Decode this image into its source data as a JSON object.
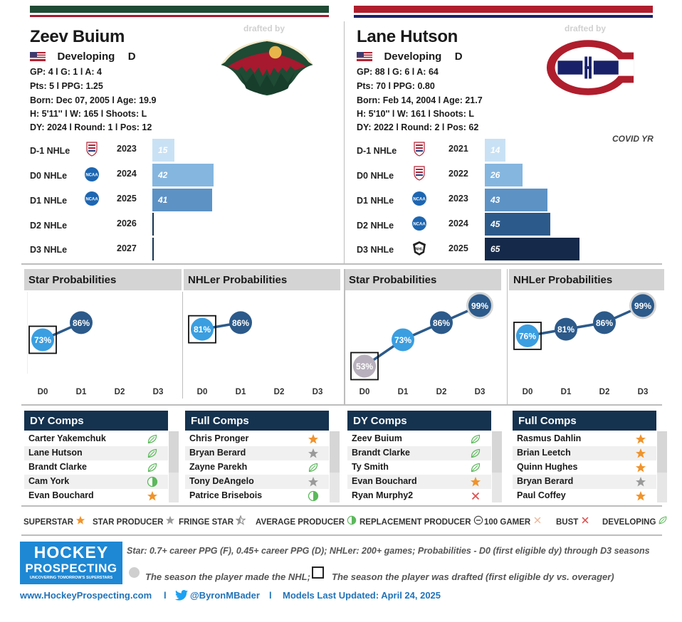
{
  "players": [
    {
      "name": "Zeev Buium",
      "status": "Developing",
      "position": "D",
      "stats1": "GP: 4 l G: 1 l A: 4",
      "stats2": "Pts: 5 l PPG: 1.25",
      "born": "Born: Dec 07, 2005 l Age: 19.9",
      "body": "H: 5'11'' l W: 165 l Shoots: L",
      "draft": "DY: 2024 l Round: 1 l Pos: 12",
      "drafted_by": "drafted by",
      "team_logo": "wild-logo-icon",
      "note": "",
      "nhle_rows": [
        {
          "label": "D-1 NHLe",
          "league": "usntdp-icon",
          "year": "2023",
          "value": 15,
          "color": "#c9e1f4"
        },
        {
          "label": "D0 NHLe",
          "league": "ncaa-icon",
          "year": "2024",
          "value": 42,
          "color": "#85b6df"
        },
        {
          "label": "D1 NHLe",
          "league": "ncaa-icon",
          "year": "2025",
          "value": 41,
          "color": "#5d92c5"
        },
        {
          "label": "D2 NHLe",
          "league": "",
          "year": "2026",
          "value": null,
          "color": "#15324f"
        },
        {
          "label": "D3 NHLe",
          "league": "",
          "year": "2027",
          "value": null,
          "color": "#15324f"
        }
      ]
    },
    {
      "name": "Lane Hutson",
      "status": "Developing",
      "position": "D",
      "stats1": "GP: 88 l G: 6 l A: 64",
      "stats2": "Pts: 70 l PPG: 0.80",
      "born": "Born: Feb 14, 2004 l Age: 21.7",
      "body": "H: 5'10'' l W: 161 l Shoots: L",
      "draft": "DY: 2022 l Round: 2 l Pos: 62",
      "drafted_by": "drafted by",
      "team_logo": "canadiens-logo-icon",
      "note": "COVID YR",
      "nhle_rows": [
        {
          "label": "D-1 NHLe",
          "league": "usntdp-icon",
          "year": "2021",
          "value": 14,
          "color": "#c9e1f4"
        },
        {
          "label": "D0 NHLe",
          "league": "usntdp-icon",
          "year": "2022",
          "value": 26,
          "color": "#85b6df"
        },
        {
          "label": "D1 NHLe",
          "league": "ncaa-icon",
          "year": "2023",
          "value": 43,
          "color": "#5d92c5"
        },
        {
          "label": "D2 NHLe",
          "league": "ncaa-icon",
          "year": "2024",
          "value": 45,
          "color": "#2c5a8a"
        },
        {
          "label": "D3 NHLe",
          "league": "nhl-icon",
          "year": "2025",
          "value": 65,
          "color": "#15294a"
        }
      ]
    }
  ],
  "chart_data": [
    {
      "type": "line",
      "title": "Star Probabilities",
      "categories": [
        "D0",
        "D1",
        "D2",
        "D3"
      ],
      "values": [
        73,
        86,
        null,
        null
      ],
      "labels": [
        "73%",
        "86%",
        "",
        ""
      ],
      "drafted_index": 0,
      "made_nhl_index": null
    },
    {
      "type": "line",
      "title": "NHLer Probabilities",
      "categories": [
        "D0",
        "D1",
        "D2",
        "D3"
      ],
      "values": [
        81,
        86,
        null,
        null
      ],
      "labels": [
        "81%",
        "86%",
        "",
        ""
      ],
      "drafted_index": 0,
      "made_nhl_index": null
    },
    {
      "type": "line",
      "title": "Star Probabilities",
      "categories": [
        "D0",
        "D1",
        "D2",
        "D3"
      ],
      "values": [
        53,
        73,
        86,
        99
      ],
      "labels": [
        "53%",
        "73%",
        "86%",
        "99%"
      ],
      "drafted_index": 0,
      "made_nhl_index": 3
    },
    {
      "type": "line",
      "title": "NHLer Probabilities",
      "categories": [
        "D0",
        "D1",
        "D2",
        "D3"
      ],
      "values": [
        76,
        81,
        86,
        99
      ],
      "labels": [
        "76%",
        "81%",
        "86%",
        "99%"
      ],
      "drafted_index": 0,
      "made_nhl_index": 3
    }
  ],
  "comps": [
    {
      "title": "DY Comps",
      "rows": [
        {
          "name": "Carter Yakemchuk",
          "icon": "developing"
        },
        {
          "name": "Lane Hutson",
          "icon": "developing"
        },
        {
          "name": "Brandt Clarke",
          "icon": "developing"
        },
        {
          "name": "Cam York",
          "icon": "average"
        },
        {
          "name": "Evan Bouchard",
          "icon": "superstar"
        }
      ]
    },
    {
      "title": "Full Comps",
      "rows": [
        {
          "name": "Chris Pronger",
          "icon": "superstar"
        },
        {
          "name": "Bryan Berard",
          "icon": "star"
        },
        {
          "name": "Zayne Parekh",
          "icon": "developing"
        },
        {
          "name": "Tony DeAngelo",
          "icon": "star"
        },
        {
          "name": "Patrice Brisebois",
          "icon": "average"
        }
      ]
    },
    {
      "title": "DY Comps",
      "rows": [
        {
          "name": "Zeev Buium",
          "icon": "developing"
        },
        {
          "name": "Brandt Clarke",
          "icon": "developing"
        },
        {
          "name": "Ty Smith",
          "icon": "developing"
        },
        {
          "name": "Evan Bouchard",
          "icon": "superstar"
        },
        {
          "name": "Ryan Murphy2",
          "icon": "bust"
        }
      ]
    },
    {
      "title": "Full Comps",
      "rows": [
        {
          "name": "Rasmus Dahlin",
          "icon": "superstar"
        },
        {
          "name": "Brian Leetch",
          "icon": "superstar"
        },
        {
          "name": "Quinn Hughes",
          "icon": "superstar"
        },
        {
          "name": "Bryan Berard",
          "icon": "star"
        },
        {
          "name": "Paul Coffey",
          "icon": "superstar"
        }
      ]
    }
  ],
  "legend": [
    {
      "label": "SUPERSTAR",
      "icon": "superstar"
    },
    {
      "label": "STAR PRODUCER",
      "icon": "star"
    },
    {
      "label": "FRINGE STAR",
      "icon": "fringe"
    },
    {
      "label": "AVERAGE PRODUCER",
      "icon": "average"
    },
    {
      "label": "REPLACEMENT PRODUCER",
      "icon": "replacement"
    },
    {
      "label": "100 GAMER",
      "icon": "gamer"
    },
    {
      "label": "BUST",
      "icon": "bust"
    },
    {
      "label": "DEVELOPING",
      "icon": "developing"
    }
  ],
  "footer": {
    "logo_line1": "HOCKEY",
    "logo_line2": "PROSPECTING",
    "logo_tagline": "UNCOVERING TOMORROW'S SUPERSTARS",
    "definitions": "Star: 0.7+ career PPG (F), 0.45+ career PPG (D); NHLer: 200+ games; Probabilities - D0 (first eligible dy) through D3 seasons",
    "nhl_season": "The season the player made the NHL;",
    "drafted_season": "The season the player was drafted (first eligible dy vs. overager)",
    "website": "www.HockeyProspecting.com",
    "sep1": "l",
    "twitter": "@ByronMBader",
    "sep2": "l",
    "updated": "Models Last Updated: April 24, 2025"
  },
  "colors": {
    "wild_green": "#1f4a34",
    "wild_red": "#a6192e",
    "habs_red": "#af1e2d",
    "habs_blue": "#192168",
    "navy": "#15324f",
    "light_blue": "#3a9ee0",
    "superstar": "#f0932b",
    "star": "#9a9a9a",
    "bust": "#e05050",
    "developing": "#5cb85c"
  }
}
